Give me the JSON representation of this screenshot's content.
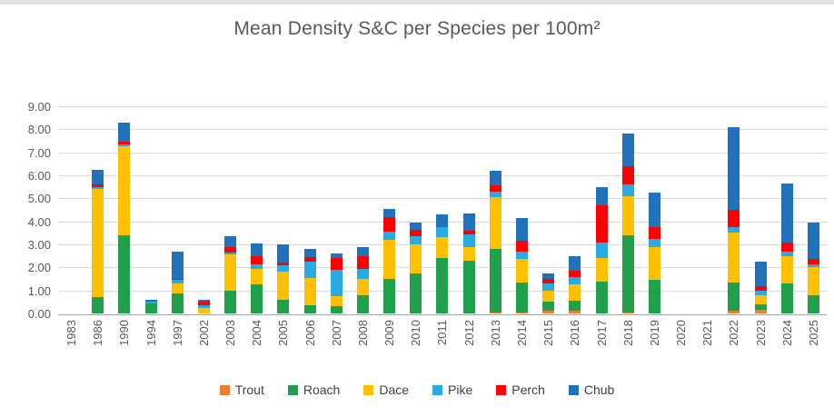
{
  "chart_data": {
    "type": "bar",
    "stacked": true,
    "title": "Mean Density S&C per Species per 100m²",
    "xlabel": "",
    "ylabel": "",
    "ylim": [
      0,
      9
    ],
    "ytick_step": 1,
    "ytick_labels": [
      "0.00",
      "1.00",
      "2.00",
      "3.00",
      "4.00",
      "5.00",
      "6.00",
      "7.00",
      "8.00",
      "9.00"
    ],
    "grid": true,
    "legend_position": "bottom",
    "categories": [
      "1983",
      "1986",
      "1990",
      "1994",
      "1997",
      "2002",
      "2003",
      "2004",
      "2005",
      "2006",
      "2007",
      "2008",
      "2009",
      "2010",
      "2011",
      "2012",
      "2013",
      "2014",
      "2015",
      "2016",
      "2017",
      "2018",
      "2019",
      "2020",
      "2021",
      "2022",
      "2023",
      "2024",
      "2025"
    ],
    "series": [
      {
        "name": "Trout",
        "color": "#ED7D31",
        "values": [
          0,
          0,
          0,
          0,
          0,
          0,
          0,
          0,
          0,
          0,
          0,
          0,
          0,
          0,
          0,
          0,
          0.05,
          0.05,
          0.1,
          0.1,
          0,
          0.05,
          0,
          0,
          0,
          0.1,
          0.15,
          0,
          0
        ]
      },
      {
        "name": "Roach",
        "color": "#21A04B",
        "values": [
          0,
          0.7,
          3.4,
          0.45,
          0.85,
          0,
          1.0,
          1.25,
          0.6,
          0.35,
          0.3,
          0.8,
          1.5,
          1.75,
          2.4,
          2.3,
          2.75,
          1.3,
          0.4,
          0.45,
          1.4,
          3.35,
          1.45,
          0,
          0,
          1.25,
          0.25,
          1.3,
          0.8
        ]
      },
      {
        "name": "Dace",
        "color": "#FFC000",
        "values": [
          0,
          4.7,
          3.85,
          0,
          0.45,
          0.25,
          1.55,
          0.7,
          1.2,
          1.2,
          0.45,
          0.7,
          1.7,
          1.25,
          0.9,
          0.6,
          2.25,
          1.0,
          0.5,
          0.7,
          1.0,
          1.7,
          1.45,
          0,
          0,
          2.15,
          0.4,
          1.2,
          1.2
        ]
      },
      {
        "name": "Pike",
        "color": "#29ABE2",
        "values": [
          0,
          0.1,
          0.1,
          0.05,
          0.15,
          0.1,
          0.1,
          0.2,
          0.3,
          0.7,
          1.15,
          0.45,
          0.35,
          0.35,
          0.45,
          0.55,
          0.25,
          0.35,
          0.3,
          0.35,
          0.7,
          0.5,
          0.35,
          0,
          0,
          0.25,
          0.2,
          0.2,
          0.15
        ]
      },
      {
        "name": "Perch",
        "color": "#FF0000",
        "values": [
          0,
          0.1,
          0.1,
          0,
          0.05,
          0.15,
          0.25,
          0.35,
          0.1,
          0.2,
          0.5,
          0.55,
          0.65,
          0.3,
          0,
          0.15,
          0.25,
          0.45,
          0.2,
          0.25,
          1.6,
          0.8,
          0.5,
          0,
          0,
          0.75,
          0.2,
          0.4,
          0.2
        ]
      },
      {
        "name": "Chub",
        "color": "#2272B9",
        "values": [
          0,
          0.65,
          0.85,
          0.1,
          1.2,
          0.1,
          0.45,
          0.55,
          0.8,
          0.35,
          0.2,
          0.4,
          0.35,
          0.3,
          0.55,
          0.75,
          0.65,
          1.0,
          0.25,
          0.65,
          0.8,
          1.4,
          1.5,
          0,
          0,
          3.6,
          1.05,
          2.55,
          1.6
        ]
      }
    ]
  },
  "colors": {
    "title_text": "#595959",
    "axis_text": "#595959",
    "legend_text": "#404040",
    "gridline": "#D9D9D9",
    "axis_line": "#A6A6A6",
    "background": "#FFFFFF"
  }
}
